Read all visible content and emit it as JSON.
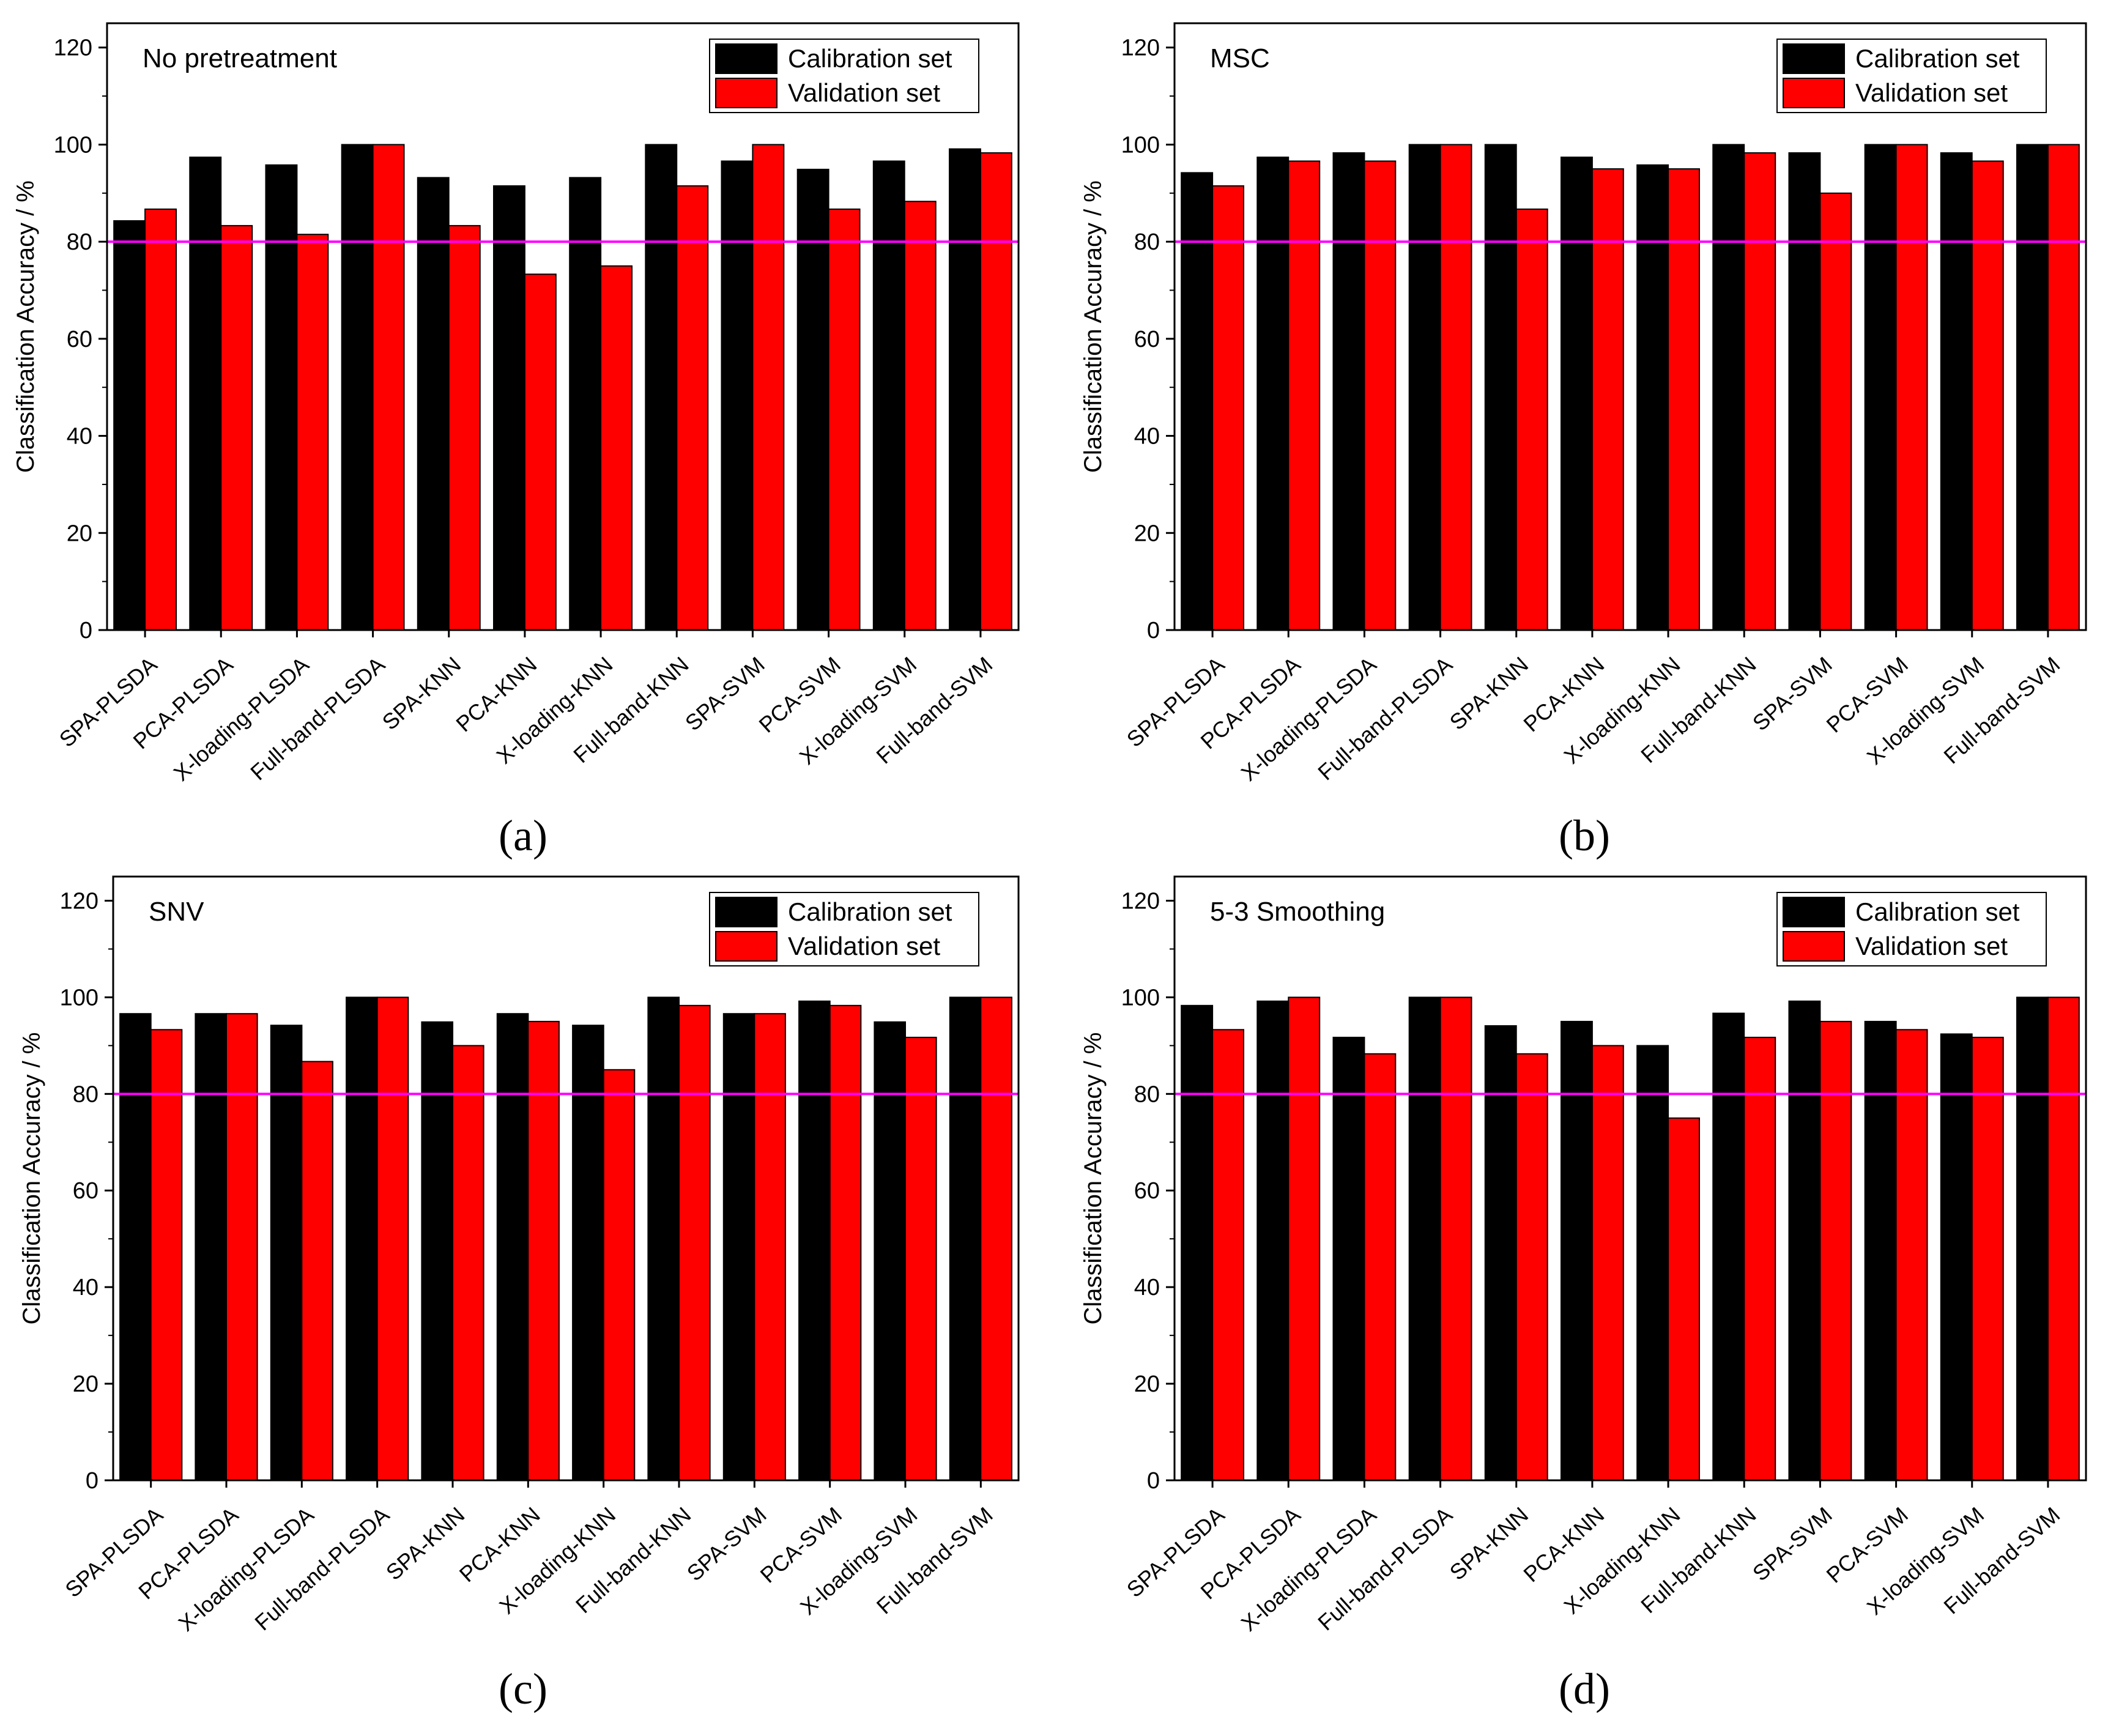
{
  "figure": {
    "panel_labels": [
      "(a)",
      "(b)",
      "(c)",
      "(d)"
    ],
    "threshold": 80,
    "colors": {
      "calibration": "#000000",
      "validation": "#ff0000",
      "threshold_line": "#ff00ff",
      "axis": "#000000"
    }
  },
  "chart_data": [
    {
      "type": "bar",
      "title": "No pretreatment",
      "xlabel": "",
      "ylabel": "Classification Accuracy / %",
      "ylim": [
        0,
        125
      ],
      "yticks": [
        0,
        20,
        40,
        60,
        80,
        100,
        120
      ],
      "categories": [
        "SPA-PLSDA",
        "PCA-PLSDA",
        "X-loading-PLSDA",
        "Full-band-PLSDA",
        "SPA-KNN",
        "PCA-KNN",
        "X-loading-KNN",
        "Full-band-KNN",
        "SPA-SVM",
        "PCA-SVM",
        "X-loading-SVM",
        "Full-band-SVM"
      ],
      "series": [
        {
          "name": "Calibration set",
          "values": [
            84.3,
            97.4,
            95.8,
            100,
            93.2,
            91.5,
            93.2,
            100,
            96.6,
            94.9,
            96.6,
            99.1
          ]
        },
        {
          "name": "Validation set",
          "values": [
            86.7,
            83.3,
            81.5,
            100,
            83.3,
            73.3,
            75,
            91.5,
            100,
            86.7,
            88.3,
            98.3
          ]
        }
      ],
      "legend": "top-right",
      "reference_line": 80
    },
    {
      "type": "bar",
      "title": "MSC",
      "xlabel": "",
      "ylabel": "Classification Accuracy / %",
      "ylim": [
        0,
        125
      ],
      "yticks": [
        0,
        20,
        40,
        60,
        80,
        100,
        120
      ],
      "categories": [
        "SPA-PLSDA",
        "PCA-PLSDA",
        "X-loading-PLSDA",
        "Full-band-PLSDA",
        "SPA-KNN",
        "PCA-KNN",
        "X-loading-KNN",
        "Full-band-KNN",
        "SPA-SVM",
        "PCA-SVM",
        "X-loading-SVM",
        "Full-band-SVM"
      ],
      "series": [
        {
          "name": "Calibration set",
          "values": [
            94.2,
            97.4,
            98.3,
            100,
            100,
            97.4,
            95.8,
            100,
            98.3,
            100,
            98.3,
            100
          ]
        },
        {
          "name": "Validation set",
          "values": [
            91.5,
            96.6,
            96.6,
            100,
            86.7,
            95,
            95,
            98.3,
            90,
            100,
            96.6,
            100
          ]
        }
      ],
      "legend": "top-right",
      "reference_line": 80
    },
    {
      "type": "bar",
      "title": "SNV",
      "xlabel": "",
      "ylabel": "Classification Accuracy / %",
      "ylim": [
        0,
        125
      ],
      "yticks": [
        0,
        20,
        40,
        60,
        80,
        100,
        120
      ],
      "categories": [
        "SPA-PLSDA",
        "PCA-PLSDA",
        "X-loading-PLSDA",
        "Full-band-PLSDA",
        "SPA-KNN",
        "PCA-KNN",
        "X-loading-KNN",
        "Full-band-KNN",
        "SPA-SVM",
        "PCA-SVM",
        "X-loading-SVM",
        "Full-band-SVM"
      ],
      "series": [
        {
          "name": "Calibration set",
          "values": [
            96.6,
            96.6,
            94.2,
            100,
            94.9,
            96.6,
            94.2,
            100,
            96.6,
            99.2,
            94.9,
            100
          ]
        },
        {
          "name": "Validation set",
          "values": [
            93.3,
            96.6,
            86.7,
            100,
            90,
            95,
            85,
            98.3,
            96.6,
            98.3,
            91.7,
            100
          ]
        }
      ],
      "legend": "top-right",
      "reference_line": 80
    },
    {
      "type": "bar",
      "title": "5-3 Smoothing",
      "xlabel": "",
      "ylabel": "Classification Accuracy / %",
      "ylim": [
        0,
        125
      ],
      "yticks": [
        0,
        20,
        40,
        60,
        80,
        100,
        120
      ],
      "categories": [
        "SPA-PLSDA",
        "PCA-PLSDA",
        "X-loading-PLSDA",
        "Full-band-PLSDA",
        "SPA-KNN",
        "PCA-KNN",
        "X-loading-KNN",
        "Full-band-KNN",
        "SPA-SVM",
        "PCA-SVM",
        "X-loading-SVM",
        "Full-band-SVM"
      ],
      "series": [
        {
          "name": "Calibration set",
          "values": [
            98.3,
            99.2,
            91.7,
            100,
            94.1,
            95,
            90,
            96.7,
            99.2,
            95,
            92.4,
            100
          ]
        },
        {
          "name": "Validation set",
          "values": [
            93.3,
            100,
            88.3,
            100,
            88.3,
            90,
            75,
            91.7,
            95,
            93.3,
            91.7,
            100
          ]
        }
      ],
      "legend": "top-right",
      "reference_line": 80
    }
  ]
}
